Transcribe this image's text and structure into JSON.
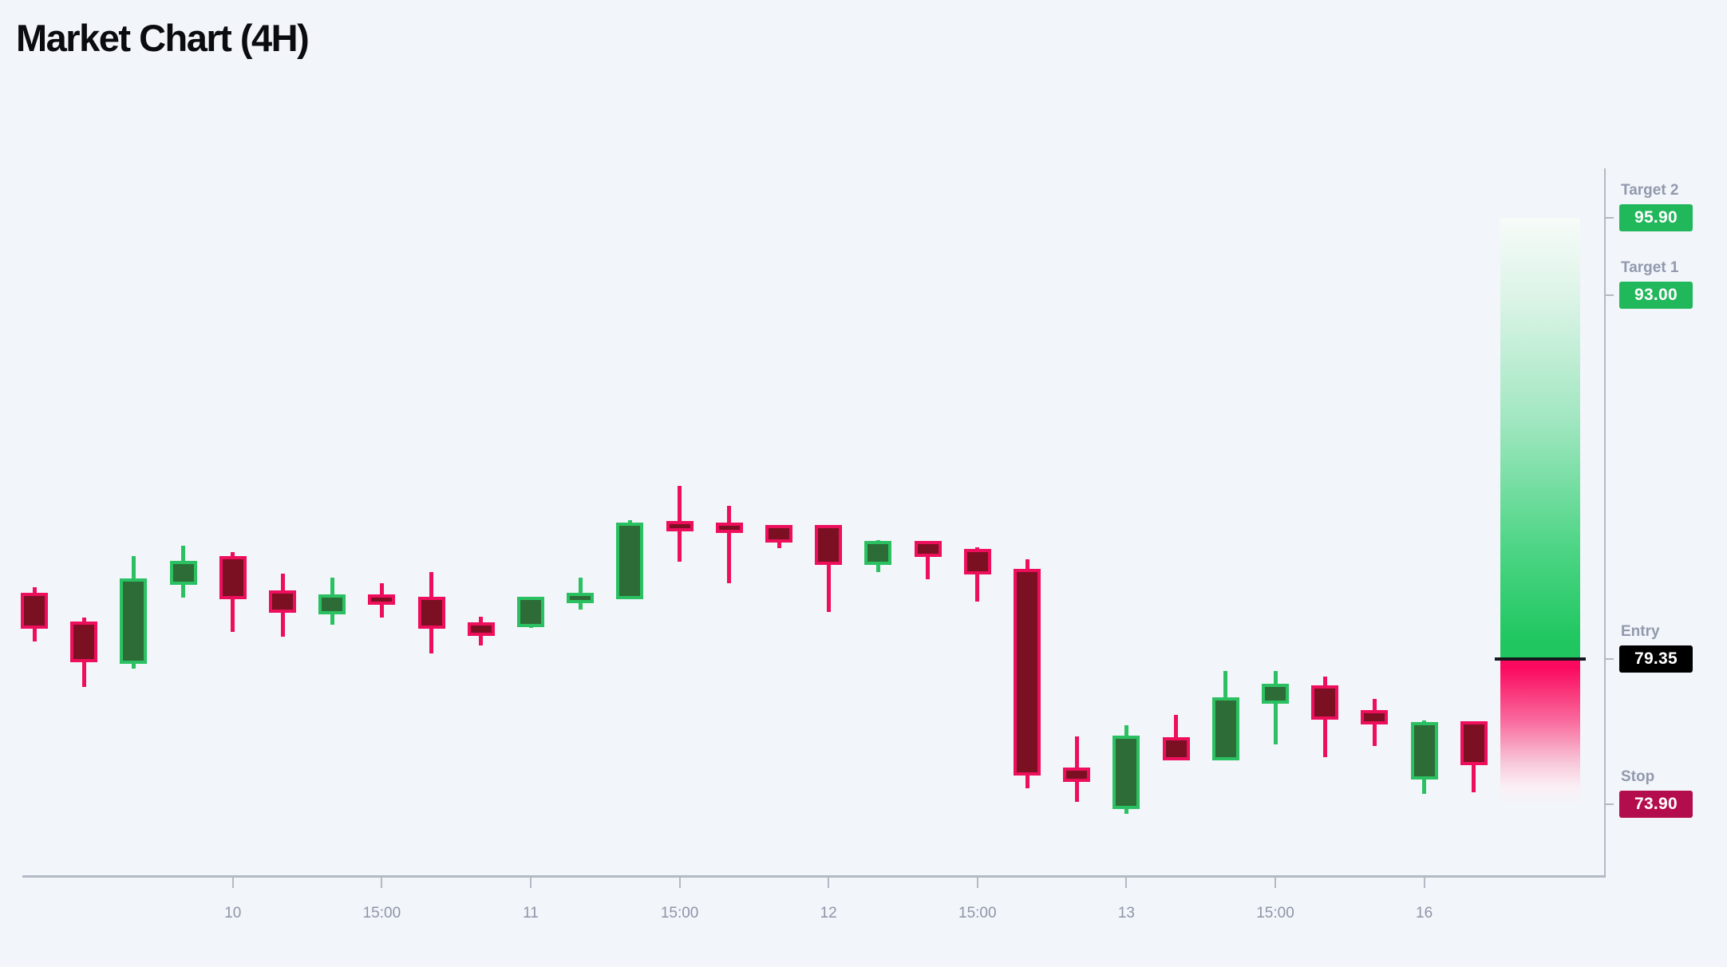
{
  "title": "Market Chart (4H)",
  "levels": [
    {
      "name": "Target 2",
      "value": "95.90",
      "price": 95.9,
      "type": "target"
    },
    {
      "name": "Target 1",
      "value": "93.00",
      "price": 93.0,
      "type": "target"
    },
    {
      "name": "Entry",
      "value": "79.35",
      "price": 79.35,
      "type": "entry"
    },
    {
      "name": "Stop",
      "value": "73.90",
      "price": 73.9,
      "type": "stop"
    }
  ],
  "colors": {
    "background": "#f2f5f9",
    "axis": "#b3bac4",
    "tick_label": "#8d95a8",
    "level_label": "#9199ad",
    "bull_border": "#2bc162",
    "bull_fill": "#2d6b37",
    "bear_border": "#ee0f5c",
    "bear_fill": "#7a1022",
    "target_badge": "#21b75b",
    "entry_badge": "#000000",
    "stop_badge": "#b40d4d"
  },
  "chart_data": {
    "type": "candlestick",
    "title": "Market Chart (4H)",
    "timeframe": "4H",
    "price_range": [
      73.9,
      95.9
    ],
    "grid": false,
    "x_ticks": [
      {
        "label": "10",
        "candle_index": 4
      },
      {
        "label": "15:00",
        "candle_index": 7
      },
      {
        "label": "11",
        "candle_index": 10
      },
      {
        "label": "15:00",
        "candle_index": 13
      },
      {
        "label": "12",
        "candle_index": 16
      },
      {
        "label": "15:00",
        "candle_index": 19
      },
      {
        "label": "13",
        "candle_index": 22
      },
      {
        "label": "15:00",
        "candle_index": 25
      },
      {
        "label": "16",
        "candle_index": 28
      }
    ],
    "candles": [
      {
        "o": 81.7,
        "h": 82.05,
        "l": 80.0,
        "c": 80.6
      },
      {
        "o": 80.65,
        "h": 80.9,
        "l": 78.3,
        "c": 79.35
      },
      {
        "o": 79.3,
        "h": 83.2,
        "l": 79.0,
        "c": 82.25
      },
      {
        "o": 82.25,
        "h": 83.6,
        "l": 81.65,
        "c": 82.9
      },
      {
        "o": 83.1,
        "h": 83.35,
        "l": 80.35,
        "c": 81.7
      },
      {
        "o": 81.8,
        "h": 82.55,
        "l": 80.2,
        "c": 81.2
      },
      {
        "o": 81.15,
        "h": 82.4,
        "l": 80.65,
        "c": 81.65
      },
      {
        "o": 81.65,
        "h": 82.2,
        "l": 80.9,
        "c": 81.5
      },
      {
        "o": 81.55,
        "h": 82.6,
        "l": 79.55,
        "c": 80.6
      },
      {
        "o": 80.6,
        "h": 80.95,
        "l": 79.85,
        "c": 80.35
      },
      {
        "o": 80.65,
        "h": 81.55,
        "l": 80.5,
        "c": 81.55
      },
      {
        "o": 81.55,
        "h": 82.4,
        "l": 81.2,
        "c": 81.7
      },
      {
        "o": 81.7,
        "h": 84.55,
        "l": 81.6,
        "c": 84.35
      },
      {
        "o": 84.4,
        "h": 85.85,
        "l": 83.0,
        "c": 84.25
      },
      {
        "o": 84.35,
        "h": 85.1,
        "l": 82.2,
        "c": 84.2
      },
      {
        "o": 84.25,
        "h": 84.3,
        "l": 83.5,
        "c": 83.85
      },
      {
        "o": 84.25,
        "h": 84.25,
        "l": 81.1,
        "c": 83.0
      },
      {
        "o": 83.0,
        "h": 83.8,
        "l": 82.6,
        "c": 83.65
      },
      {
        "o": 83.65,
        "h": 83.7,
        "l": 82.35,
        "c": 83.3
      },
      {
        "o": 83.35,
        "h": 83.55,
        "l": 81.5,
        "c": 82.65
      },
      {
        "o": 82.6,
        "h": 83.1,
        "l": 74.5,
        "c": 75.1
      },
      {
        "o": 75.15,
        "h": 76.45,
        "l": 74.0,
        "c": 74.85
      },
      {
        "o": 73.85,
        "h": 76.85,
        "l": 73.55,
        "c": 76.35
      },
      {
        "o": 76.3,
        "h": 77.25,
        "l": 75.55,
        "c": 75.65
      },
      {
        "o": 75.65,
        "h": 78.9,
        "l": 75.6,
        "c": 77.8
      },
      {
        "o": 77.8,
        "h": 78.9,
        "l": 76.15,
        "c": 78.3
      },
      {
        "o": 78.25,
        "h": 78.7,
        "l": 75.65,
        "c": 77.2
      },
      {
        "o": 77.3,
        "h": 77.85,
        "l": 76.1,
        "c": 77.0
      },
      {
        "o": 74.95,
        "h": 77.05,
        "l": 74.3,
        "c": 76.85
      },
      {
        "o": 76.9,
        "h": 76.9,
        "l": 74.35,
        "c": 75.5
      }
    ]
  }
}
